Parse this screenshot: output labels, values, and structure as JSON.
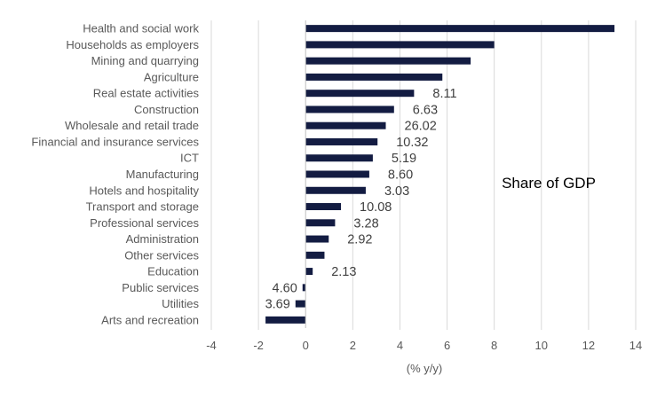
{
  "chart_data": {
    "type": "bar",
    "orientation": "horizontal",
    "title": "",
    "xlabel": "(% y/y)",
    "ylabel": "",
    "xlim": [
      -4,
      14
    ],
    "xticks": [
      -4,
      -2,
      0,
      2,
      4,
      6,
      8,
      10,
      12,
      14
    ],
    "grid": true,
    "legend": "none",
    "annotation": "Share of GDP",
    "bar_color": "#131c42",
    "categories": [
      "Health and social work",
      "Households as employers",
      "Mining and quarrying",
      "Agriculture",
      "Real estate activities",
      "Construction",
      "Wholesale and retail trade",
      "Financial and insurance services",
      "ICT",
      "Manufacturing",
      "Hotels and hospitality",
      "Transport and storage",
      "Professional services",
      "Administration",
      "Other services",
      "Education",
      "Public services",
      "Utilities",
      "Arts and recreation"
    ],
    "values": [
      13.1,
      8.0,
      7.0,
      5.8,
      4.6,
      3.75,
      3.4,
      3.05,
      2.85,
      2.7,
      2.55,
      1.5,
      1.25,
      0.98,
      0.8,
      0.3,
      -0.13,
      -0.43,
      -1.7
    ],
    "data_labels": [
      "",
      "",
      "",
      "",
      "8.11",
      "6.63",
      "26.02",
      "10.32",
      "5.19",
      "8.60",
      "3.03",
      "10.08",
      "3.28",
      "2.92",
      "",
      "2.13",
      "4.60",
      "3.69",
      ""
    ]
  }
}
